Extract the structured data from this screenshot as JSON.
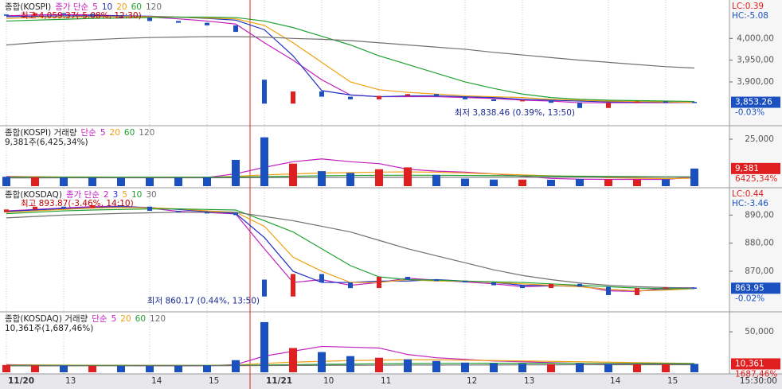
{
  "x_axis": {
    "categories": [
      "11/20",
      null,
      "13",
      null,
      null,
      "14",
      null,
      "15",
      null,
      "11/21",
      null,
      "10",
      null,
      "11",
      null,
      null,
      "12",
      null,
      "13",
      null,
      null,
      "14",
      null,
      "15",
      null
    ],
    "end_label": "15:30:00"
  },
  "chart_data": [
    {
      "type": "candlestick",
      "title": "종합(KOSPI)",
      "legend_prefix": "종가 단순",
      "up_color": "#e02020",
      "down_color": "#1a50c0",
      "open": [
        4055,
        4052,
        4058,
        4056,
        4050,
        4048,
        4040,
        4036,
        4030,
        3905,
        3850,
        3878,
        3866,
        3860,
        3868,
        3872,
        3866,
        3860,
        3856,
        3858,
        3852,
        3840,
        3852,
        3855,
        3854
      ],
      "close": [
        4052,
        4058,
        4056,
        4050,
        4048,
        4040,
        4036,
        4030,
        4015,
        3850,
        3878,
        3866,
        3860,
        3868,
        3872,
        3866,
        3860,
        3856,
        3858,
        3852,
        3840,
        3852,
        3855,
        3854,
        3853.26
      ],
      "series": [
        {
          "name": "5",
          "color": "#c020c0",
          "values": [
            4052,
            4054,
            4055,
            4054,
            4052,
            4049,
            4045,
            4040,
            4033,
            3990,
            3950,
            3905,
            3870,
            3866,
            3866,
            3866,
            3864,
            3862,
            3858,
            3856,
            3852,
            3852,
            3852,
            3852,
            3853
          ]
        },
        {
          "name": "10",
          "color": "#2030c0",
          "values": [
            4050,
            4051,
            4052,
            4052,
            4052,
            4051,
            4049,
            4046,
            4042,
            4020,
            3960,
            3880,
            3870,
            3866,
            3868,
            3868,
            3866,
            3864,
            3860,
            3858,
            3856,
            3854,
            3854,
            3853,
            3853
          ]
        },
        {
          "name": "20",
          "color": "#f0a010",
          "values": [
            4046,
            4048,
            4049,
            4050,
            4050,
            4050,
            4049,
            4047,
            4045,
            4030,
            3990,
            3945,
            3900,
            3882,
            3876,
            3872,
            3868,
            3866,
            3864,
            3860,
            3858,
            3856,
            3855,
            3854,
            3853
          ]
        },
        {
          "name": "60",
          "color": "#20a030",
          "values": [
            4040,
            4042,
            4044,
            4046,
            4047,
            4048,
            4049,
            4049,
            4048,
            4040,
            4025,
            4005,
            3985,
            3960,
            3940,
            3920,
            3900,
            3885,
            3872,
            3864,
            3860,
            3858,
            3857,
            3856,
            3855
          ]
        },
        {
          "name": "120",
          "color": "#707070",
          "values": [
            3985,
            3990,
            3994,
            3997,
            4000,
            4002,
            4003,
            4004,
            4004,
            4003,
            4000,
            3998,
            3995,
            3990,
            3985,
            3980,
            3975,
            3968,
            3962,
            3956,
            3950,
            3945,
            3940,
            3935,
            3932
          ]
        }
      ],
      "ylim": [
        3803,
        4081
      ],
      "yticks": [
        {
          "value": 4000,
          "label": "4,000,00"
        },
        {
          "value": 3950,
          "label": "3,950,00"
        },
        {
          "value": 3900,
          "label": "3,900,00"
        }
      ],
      "high_note": "최고 4,059.37(-5.08%, 12:30)",
      "low_note": "최저 3,838.46 (0.39%, 13:50)",
      "lc": "LC:0.39",
      "hc": "HC:-5.08",
      "last_label": "3,853.26",
      "change_label": "-0.03%"
    },
    {
      "type": "bar",
      "title": "종합(KOSPI) 거래량",
      "legend_prefix": "단순",
      "values": [
        5000,
        4800,
        4600,
        4500,
        4400,
        4300,
        4500,
        4700,
        14000,
        26000,
        12000,
        8000,
        7000,
        9000,
        10000,
        6000,
        4000,
        3500,
        3500,
        3400,
        3800,
        3600,
        3500,
        3600,
        9381
      ],
      "series": [
        {
          "name": "5",
          "color": "#c020c0",
          "values": [
            5200,
            5000,
            4800,
            4700,
            4600,
            4500,
            4500,
            4600,
            6600,
            10000,
            13000,
            14500,
            13000,
            12000,
            9000,
            8000,
            7500,
            6500,
            5300,
            4100,
            3700,
            3600,
            3600,
            3600,
            4800
          ]
        },
        {
          "name": "20",
          "color": "#f0a010",
          "values": [
            5000,
            5000,
            4900,
            4900,
            4800,
            4800,
            4800,
            4700,
            5200,
            6000,
            6500,
            7000,
            7200,
            7500,
            7600,
            7400,
            7000,
            6500,
            6000,
            5500,
            5000,
            4500,
            4200,
            4000,
            4200
          ]
        },
        {
          "name": "60",
          "color": "#20a030",
          "values": [
            4800,
            4800,
            4800,
            4800,
            4800,
            4800,
            4800,
            4800,
            4900,
            5100,
            5300,
            5500,
            5700,
            5800,
            5800,
            5800,
            5700,
            5600,
            5500,
            5400,
            5300,
            5200,
            5100,
            5000,
            5000
          ]
        },
        {
          "name": "120",
          "color": "#707070",
          "values": [
            4400,
            4400,
            4420,
            4420,
            4430,
            4430,
            4440,
            4450,
            4480,
            4550,
            4600,
            4640,
            4680,
            4700,
            4720,
            4730,
            4740,
            4740,
            4745,
            4750,
            4750,
            4750,
            4750,
            4750,
            4760
          ]
        }
      ],
      "ylim": [
        0,
        30500
      ],
      "yticks": [
        {
          "value": 25000,
          "label": "25,000"
        }
      ],
      "summary": "9,381주(6,425,34%)",
      "last_label": "9,381",
      "ratio_label": "6425,34%"
    },
    {
      "type": "candlestick",
      "title": "종합(KOSDAQ)",
      "legend_prefix": "종가 단순",
      "up_color": "#e02020",
      "down_color": "#1a50c0",
      "open": [
        891,
        892,
        893,
        892.5,
        893.5,
        893,
        891.5,
        891,
        890.8,
        867,
        861,
        869,
        866,
        864,
        868,
        867,
        866.5,
        866,
        865,
        864,
        865.5,
        864.5,
        861.5,
        864,
        864.2
      ],
      "close": [
        892,
        893,
        892.5,
        893.5,
        893,
        891.5,
        891,
        890.8,
        890,
        861,
        869,
        866,
        864,
        868,
        867,
        866.5,
        866,
        865,
        864,
        865.5,
        864.5,
        861.5,
        864,
        864.2,
        863.95
      ],
      "series": [
        {
          "name": "2",
          "color": "#c020c0",
          "values": [
            891.5,
            892,
            892.5,
            893,
            893.2,
            892.5,
            891.3,
            890.9,
            890.4,
            878,
            866,
            867,
            865,
            866,
            867.5,
            866.8,
            866.2,
            865.5,
            864.5,
            864.8,
            864.8,
            863,
            862.8,
            864.1,
            864.1
          ]
        },
        {
          "name": "3",
          "color": "#2030c0",
          "values": [
            891.3,
            891.8,
            892.3,
            892.7,
            893,
            892.7,
            892,
            891.2,
            890.6,
            882,
            870,
            866,
            866,
            866.5,
            866.5,
            867,
            866.5,
            866,
            865,
            864.8,
            864.6,
            863.5,
            863,
            863.5,
            864
          ]
        },
        {
          "name": "5",
          "color": "#f0a010",
          "values": [
            891,
            891.5,
            892,
            892.5,
            892.7,
            892.6,
            892.2,
            891.5,
            891,
            886,
            875,
            870,
            866,
            866,
            867,
            866.5,
            866.5,
            866,
            865.5,
            865,
            864.5,
            863.5,
            863,
            863.3,
            863.8
          ]
        },
        {
          "name": "10",
          "color": "#20a030",
          "values": [
            890.5,
            891,
            891.5,
            891.8,
            892,
            892.2,
            892.2,
            892,
            891.8,
            888,
            884,
            878,
            872,
            868,
            867,
            866.8,
            866.5,
            866.2,
            866,
            865.5,
            865,
            864.5,
            864,
            863.8,
            863.8
          ]
        },
        {
          "name": "30",
          "color": "#707070",
          "values": [
            889,
            889.5,
            890,
            890.3,
            890.6,
            890.8,
            891,
            891,
            891,
            889.5,
            888,
            886,
            884,
            881,
            878,
            875.5,
            873,
            870.5,
            868.5,
            867,
            865.8,
            865,
            864.5,
            864.2,
            864
          ]
        }
      ],
      "ylim": [
        856.1,
        898.6
      ],
      "yticks": [
        {
          "value": 890,
          "label": "890,00"
        },
        {
          "value": 880,
          "label": "880,00"
        },
        {
          "value": 870,
          "label": "870,00"
        }
      ],
      "high_note": "최고 893.87(-3.46%, 14:10)",
      "low_note": "최저 860.17 (0.44%, 13:50)",
      "lc": "LC:0.44",
      "hc": "HC:-3.46",
      "last_label": "863.95",
      "change_label": "-0.02%"
    },
    {
      "type": "bar",
      "title": "종합(KOSDAQ) 거래량",
      "legend_prefix": "단순",
      "values": [
        9000,
        8500,
        8200,
        8000,
        7800,
        7600,
        8000,
        8500,
        15000,
        62000,
        30000,
        25000,
        20000,
        18000,
        16000,
        14000,
        12000,
        11000,
        10500,
        10000,
        11000,
        10000,
        9800,
        9900,
        10361
      ],
      "series": [
        {
          "name": "5",
          "color": "#c020c0",
          "values": [
            9500,
            9000,
            8700,
            8500,
            8300,
            8000,
            8000,
            8100,
            9500,
            20000,
            26000,
            32000,
            31000,
            30000,
            22000,
            18000,
            16000,
            14000,
            13000,
            12000,
            11000,
            10500,
            10200,
            10000,
            10200
          ]
        },
        {
          "name": "20",
          "color": "#f0a010",
          "values": [
            9000,
            9000,
            8900,
            8800,
            8700,
            8600,
            8600,
            8500,
            8900,
            11000,
            12500,
            13500,
            14500,
            15000,
            15500,
            15500,
            15000,
            14500,
            14000,
            13500,
            13000,
            12500,
            12000,
            11500,
            11000
          ]
        },
        {
          "name": "60",
          "color": "#20a030",
          "values": [
            8500,
            8500,
            8500,
            8500,
            8500,
            8500,
            8500,
            8500,
            8600,
            9000,
            9400,
            9800,
            10200,
            10500,
            10800,
            11000,
            11100,
            11200,
            11200,
            11200,
            11100,
            11000,
            10900,
            10800,
            10700
          ]
        },
        {
          "name": "120",
          "color": "#707070",
          "values": [
            8000,
            8000,
            8000,
            8050,
            8050,
            8100,
            8100,
            8100,
            8150,
            8300,
            8450,
            8600,
            8700,
            8800,
            8900,
            9000,
            9050,
            9100,
            9150,
            9200,
            9250,
            9250,
            9300,
            9300,
            9300
          ]
        }
      ],
      "ylim": [
        0,
        70750
      ],
      "yticks": [
        {
          "value": 50000,
          "label": "50,000"
        }
      ],
      "summary": "10,361주(1,687,46%)",
      "last_label": "10,361",
      "ratio_label": "1687,46%"
    }
  ]
}
